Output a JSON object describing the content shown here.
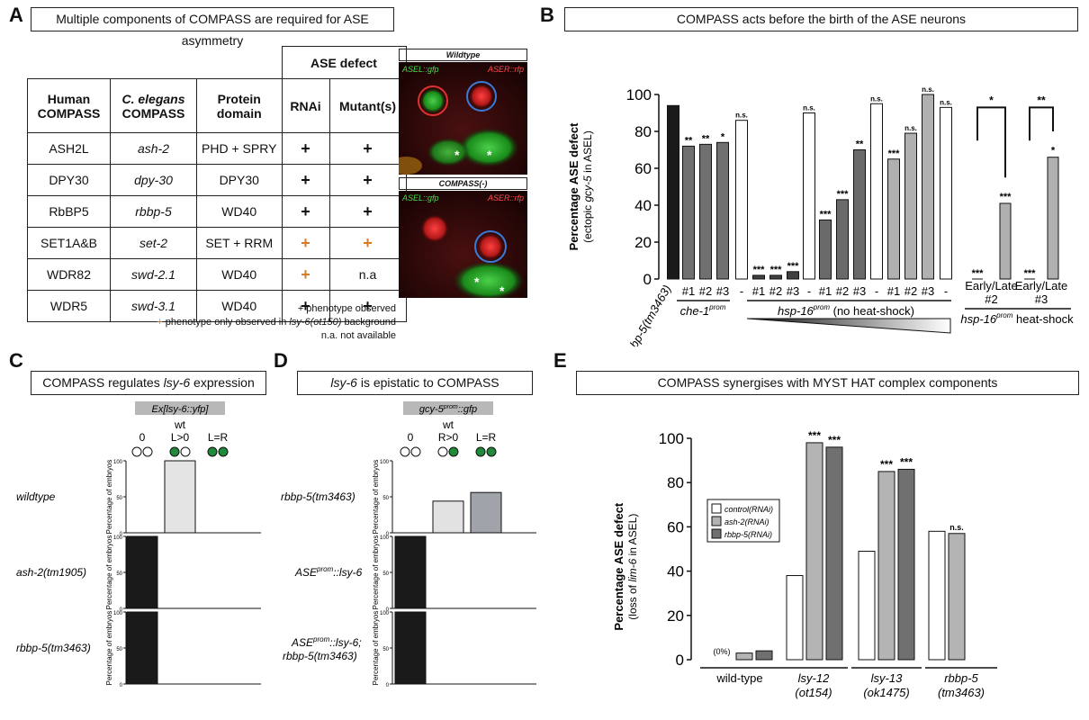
{
  "panelA": {
    "letter": "A",
    "title": "Multiple components of COMPASS are required for ASE asymmetry",
    "table": {
      "group_header": "ASE defect",
      "headers": [
        "Human COMPASS",
        "C. elegans COMPASS",
        "Protein domain",
        "RNAi",
        "Mutant(s)"
      ],
      "rows": [
        {
          "human": "ASH2L",
          "ce": "ash-2",
          "domain": "PHD + SPRY",
          "rnai": "+",
          "rnai_orange": false,
          "mutant": "+",
          "mutant_orange": false
        },
        {
          "human": "DPY30",
          "ce": "dpy-30",
          "domain": "DPY30",
          "rnai": "+",
          "rnai_orange": false,
          "mutant": "+",
          "mutant_orange": false
        },
        {
          "human": "RbBP5",
          "ce": "rbbp-5",
          "domain": "WD40",
          "rnai": "+",
          "rnai_orange": false,
          "mutant": "+",
          "mutant_orange": false
        },
        {
          "human": "SET1A&B",
          "ce": "set-2",
          "domain": "SET + RRM",
          "rnai": "+",
          "rnai_orange": true,
          "mutant": "+",
          "mutant_orange": true
        },
        {
          "human": "WDR82",
          "ce": "swd-2.1",
          "domain": "WD40",
          "rnai": "+",
          "rnai_orange": true,
          "mutant": "n.a",
          "mutant_orange": false
        },
        {
          "human": "WDR5",
          "ce": "swd-3.1",
          "domain": "WD40",
          "rnai": "+",
          "rnai_orange": false,
          "mutant": "+",
          "mutant_orange": false
        }
      ]
    },
    "notes": {
      "line1": "+ phenotype observed",
      "line2_mark": "+",
      "line2_a": " phenotype only observed in ",
      "line2_b": "lsy-6(ot150)",
      "line2_c": " background",
      "line3": "n.a. not available"
    },
    "micro_top": {
      "label": "Wildtype",
      "left": "ASEL::gfp",
      "right": "ASER::rfp"
    },
    "micro_bottom": {
      "label": "COMPASS(-)",
      "left": "ASEL::gfp",
      "right": "ASER::rfp"
    }
  },
  "panelB": {
    "letter": "B",
    "title": "COMPASS acts before the birth of the ASE neurons",
    "ylabel": "Percentage ASE defect",
    "ylabel2_a": "(ectopic ",
    "ylabel2_b": "gcy-5",
    "ylabel2_c": " in ASEL)",
    "group_labels": {
      "rbbp5": "rbbp-5(tm3463)",
      "che1": "che-1",
      "che1_sup": "prom",
      "hsp": "hsp-16",
      "hsp_sup": "prom",
      "hsp_rest": " (no heat-shock)",
      "hs": "hsp-16",
      "hs_sup": "prom",
      "hs_rest": " heat-shock"
    },
    "chart_data": {
      "type": "bar",
      "ylim": [
        0,
        100
      ],
      "yticks": [
        0,
        20,
        40,
        60,
        80,
        100
      ],
      "bars": [
        {
          "label": "",
          "value": 94,
          "fill": "#1a1a1a",
          "sig": ""
        },
        {
          "label": "#1",
          "value": 72,
          "fill": "#707070",
          "sig": "**"
        },
        {
          "label": "#2",
          "value": 73,
          "fill": "#707070",
          "sig": "**"
        },
        {
          "label": "#3",
          "value": 74,
          "fill": "#707070",
          "sig": "*"
        },
        {
          "label": "-",
          "value": 86,
          "fill": "#ffffff",
          "sig": "n.s."
        },
        {
          "label": "#1",
          "value": 2,
          "fill": "#404040",
          "sig": "***"
        },
        {
          "label": "#2",
          "value": 2,
          "fill": "#404040",
          "sig": "***"
        },
        {
          "label": "#3",
          "value": 4,
          "fill": "#404040",
          "sig": "***"
        },
        {
          "label": "-",
          "value": 90,
          "fill": "#ffffff",
          "sig": "n.s."
        },
        {
          "label": "#1",
          "value": 32,
          "fill": "#6a6a6a",
          "sig": "***"
        },
        {
          "label": "#2",
          "value": 43,
          "fill": "#6a6a6a",
          "sig": "***"
        },
        {
          "label": "#3",
          "value": 70,
          "fill": "#6a6a6a",
          "sig": "**"
        },
        {
          "label": "-",
          "value": 95,
          "fill": "#ffffff",
          "sig": "n.s."
        },
        {
          "label": "#1",
          "value": 65,
          "fill": "#b0b0b0",
          "sig": "***"
        },
        {
          "label": "#2",
          "value": 79,
          "fill": "#b0b0b0",
          "sig": "n.s."
        },
        {
          "label": "#3",
          "value": 100,
          "fill": "#b0b0b0",
          "sig": "n.s."
        },
        {
          "label": "-",
          "value": 93,
          "fill": "#ffffff",
          "sig": "n.s."
        },
        {
          "label": "Early/Late",
          "label2": "#2",
          "value": 0,
          "fill": "#b0b0b0",
          "sig": "***",
          "value2": 41,
          "sig2": "***",
          "bracket": "*"
        },
        {
          "label": "Early/Late",
          "label2": "#3",
          "value": 0,
          "fill": "#b0b0b0",
          "sig": "***",
          "value2": 66,
          "sig2": "*",
          "bracket": "**"
        }
      ]
    }
  },
  "panelC": {
    "letter": "C",
    "title_a": "COMPASS regulates ",
    "title_b": "lsy-6",
    "title_c": " expression",
    "reporter": "Ex[lsy-6::yfp]",
    "wt": "wt",
    "cat0": "0",
    "cat1": "L>0",
    "cat2": "L=R",
    "ylabel": "Percentage of embryos",
    "chart_data": {
      "type": "bar",
      "categories": [
        "0",
        "L>0",
        "L=R"
      ],
      "ylim": [
        0,
        100
      ],
      "yticks": [
        0,
        50,
        100
      ],
      "series": [
        {
          "name": "wildtype",
          "values": [
            0,
            100,
            0
          ]
        },
        {
          "name": "ash-2(tm1905)",
          "values": [
            100,
            0,
            0
          ]
        },
        {
          "name": "rbbp-5(tm3463)",
          "values": [
            100,
            0,
            0
          ]
        }
      ]
    }
  },
  "panelD": {
    "letter": "D",
    "title_a": "lsy-6",
    "title_b": " is epistatic to COMPASS",
    "reporter": "gcy-5",
    "reporter_sup": "prom",
    "reporter_rest": "::gfp",
    "wt": "wt",
    "cat0": "0",
    "cat1": "R>0",
    "cat2": "L=R",
    "ylabel": "Percentage of embryos",
    "chart_data": {
      "type": "bar",
      "categories": [
        "0",
        "R>0",
        "L=R"
      ],
      "ylim": [
        0,
        100
      ],
      "yticks": [
        0,
        50,
        100
      ],
      "series": [
        {
          "name": "rbbp-5(tm3463)",
          "values": [
            0,
            44,
            56
          ]
        },
        {
          "name": "ASEprom::lsy-6",
          "values": [
            100,
            0,
            0
          ]
        },
        {
          "name": "ASEprom::lsy-6; rbbp-5(tm3463)",
          "values": [
            100,
            0,
            0
          ]
        }
      ]
    },
    "row_labels": {
      "r1": "rbbp-5(tm3463)",
      "r2a": "ASE",
      "r2sup": "prom",
      "r2b": "::lsy-6",
      "r3a": "ASE",
      "r3sup": "prom",
      "r3b": "::lsy-6;",
      "r3c": "rbbp-5(tm3463)"
    }
  },
  "panelE": {
    "letter": "E",
    "title": "COMPASS synergises with MYST HAT complex components",
    "ylabel": "Percentage ASE defect",
    "ylabel2_a": "(loss of ",
    "ylabel2_b": "lim-6",
    "ylabel2_c": " in ASEL)",
    "zero_note": "(0%)",
    "legend": [
      "control(RNAi)",
      "ash-2(RNAi)",
      "rbbp-5(RNAi)"
    ],
    "colors": [
      "#ffffff",
      "#b4b4b4",
      "#707070"
    ],
    "group_labels": [
      {
        "a": "wild-type",
        "b": ""
      },
      {
        "a": "lsy-12",
        "b": "(ot154)"
      },
      {
        "a": "lsy-13",
        "b": "(ok1475)"
      },
      {
        "a": "rbbp-5",
        "b": "(tm3463)"
      }
    ],
    "chart_data": {
      "type": "bar",
      "categories": [
        "wild-type",
        "lsy-12 (ot154)",
        "lsy-13 (ok1475)",
        "rbbp-5 (tm3463)"
      ],
      "ylim": [
        0,
        100
      ],
      "yticks": [
        0,
        20,
        40,
        60,
        80,
        100
      ],
      "series": [
        {
          "name": "control(RNAi)",
          "values": [
            0,
            38,
            49,
            58
          ]
        },
        {
          "name": "ash-2(RNAi)",
          "values": [
            3,
            98,
            85,
            57
          ]
        },
        {
          "name": "rbbp-5(RNAi)",
          "values": [
            4,
            96,
            86,
            null
          ]
        }
      ],
      "sig": [
        [
          "",
          "",
          ""
        ],
        [
          "",
          "***",
          "***"
        ],
        [
          "",
          "***",
          "***"
        ],
        [
          "",
          "n.s.",
          ""
        ]
      ]
    }
  }
}
